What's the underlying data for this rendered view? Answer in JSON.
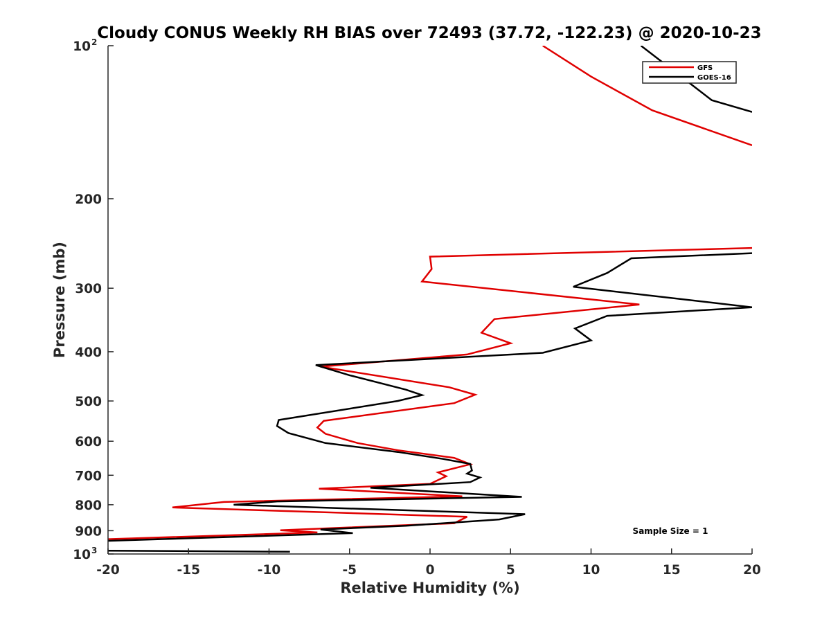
{
  "chart_data": {
    "type": "line",
    "orientation": "vertical-profile",
    "title": "Cloudy CONUS Weekly RH BIAS over 72493 (37.72, -122.23) @ 2020-10-23",
    "xlabel": "Relative Humidity (%)",
    "ylabel": "Pressure (mb)",
    "xlim": [
      -20,
      20
    ],
    "ylim": [
      100,
      1000
    ],
    "y_scale": "log",
    "y_reversed": true,
    "grid": false,
    "legend_placement": "top-right",
    "x_ticks": [
      "-20",
      "-15",
      "-10",
      "-5",
      "0",
      "5",
      "10",
      "15",
      "20"
    ],
    "x_tick_values": [
      -20,
      -15,
      -10,
      -5,
      0,
      5,
      10,
      15,
      20
    ],
    "y_ticks": [
      {
        "value": 100,
        "base": "10",
        "exp": "2"
      },
      {
        "value": 200,
        "label": "200"
      },
      {
        "value": 300,
        "label": "300"
      },
      {
        "value": 400,
        "label": "400"
      },
      {
        "value": 500,
        "label": "500"
      },
      {
        "value": 600,
        "label": "600"
      },
      {
        "value": 700,
        "label": "700"
      },
      {
        "value": 800,
        "label": "800"
      },
      {
        "value": 900,
        "label": "900"
      },
      {
        "value": 1000,
        "base": "10",
        "exp": "3"
      }
    ],
    "series": [
      {
        "name": "GFS",
        "color": "#e00000",
        "segments": [
          [
            [
              7.0,
              100
            ],
            [
              10.0,
              115
            ],
            [
              13.8,
              134
            ],
            [
              20.0,
              157
            ]
          ],
          [
            [
              20.0,
              250
            ],
            [
              0.0,
              260
            ],
            [
              0.1,
              275
            ],
            [
              -0.5,
              291
            ],
            [
              13.0,
              323
            ],
            [
              4.0,
              345
            ],
            [
              3.2,
              367
            ],
            [
              5.0,
              385
            ],
            [
              2.3,
              405
            ],
            [
              -6.8,
              428
            ],
            [
              1.2,
              470
            ],
            [
              2.8,
              486
            ],
            [
              1.5,
              505
            ],
            [
              -6.6,
              547
            ],
            [
              -7.0,
              564
            ],
            [
              -6.5,
              580
            ],
            [
              -4.5,
              605
            ],
            [
              -2.0,
              625
            ],
            [
              1.5,
              647
            ],
            [
              2.5,
              666
            ],
            [
              0.5,
              691
            ],
            [
              1.0,
              703
            ],
            [
              0.0,
              728
            ],
            [
              -6.9,
              744
            ],
            [
              2.0,
              770
            ],
            [
              -12.8,
              790
            ],
            [
              -16.0,
              810
            ],
            [
              2.3,
              845
            ],
            [
              1.5,
              870
            ],
            [
              -9.3,
              898
            ],
            [
              -7.0,
              907
            ],
            [
              -20.0,
              935
            ]
          ]
        ]
      },
      {
        "name": "GOES-16",
        "color": "#000000",
        "segments": [
          [
            [
              13.1,
              100
            ],
            [
              17.5,
              128
            ],
            [
              20.0,
              135
            ]
          ],
          [
            [
              20.0,
              256
            ],
            [
              12.5,
              262
            ],
            [
              11.0,
              280
            ],
            [
              8.9,
              298
            ],
            [
              20.0,
              327
            ],
            [
              11.0,
              340
            ],
            [
              9.0,
              360
            ],
            [
              10.0,
              380
            ],
            [
              7.0,
              402
            ],
            [
              -7.1,
              425
            ],
            [
              -5.0,
              445
            ],
            [
              -1.5,
              475
            ],
            [
              -0.5,
              487
            ],
            [
              -2.0,
              500
            ],
            [
              -9.4,
              545
            ],
            [
              -9.5,
              560
            ],
            [
              -8.8,
              578
            ],
            [
              -6.5,
              605
            ],
            [
              -2.0,
              630
            ],
            [
              0.8,
              650
            ],
            [
              2.5,
              665
            ],
            [
              2.6,
              685
            ],
            [
              2.3,
              695
            ],
            [
              3.1,
              707
            ],
            [
              2.5,
              722
            ],
            [
              -3.7,
              741
            ],
            [
              5.7,
              772
            ],
            [
              -9.5,
              788
            ],
            [
              -12.2,
              800
            ],
            [
              5.9,
              835
            ],
            [
              4.3,
              855
            ],
            [
              -1.5,
              880
            ],
            [
              -6.8,
              895
            ],
            [
              -4.8,
              910
            ],
            [
              -20.0,
              942
            ]
          ],
          [
            [
              -20.0,
              985
            ],
            [
              -8.7,
              990
            ]
          ]
        ]
      }
    ],
    "annotations": [
      "Sample Size = 1"
    ]
  }
}
